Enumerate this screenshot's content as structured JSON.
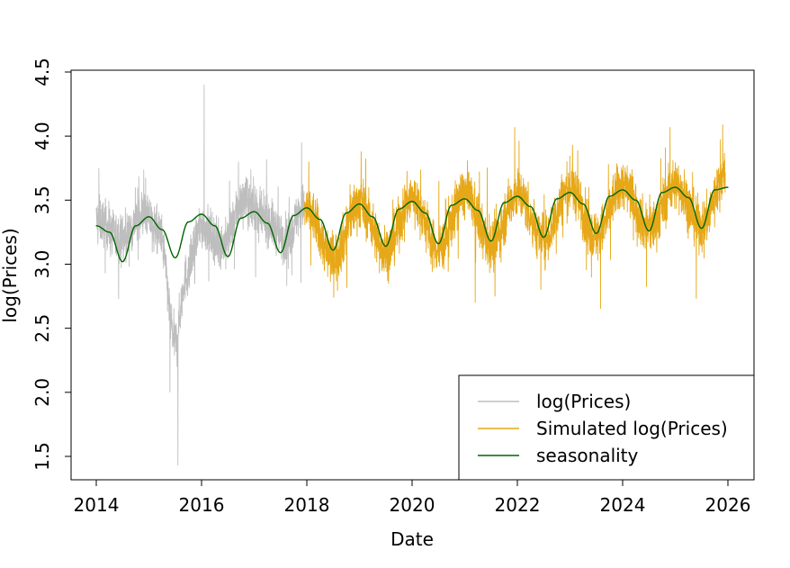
{
  "chart_data": {
    "type": "line",
    "xlabel": "Date",
    "ylabel": "log(Prices)",
    "xlim": [
      2013.5,
      2026.5
    ],
    "ylim": [
      1.32,
      4.52
    ],
    "x_ticks": [
      "2014",
      "2016",
      "2018",
      "2020",
      "2022",
      "2024",
      "2026"
    ],
    "y_ticks": [
      "1.5",
      "2.0",
      "2.5",
      "3.0",
      "3.5",
      "4.0",
      "4.5"
    ],
    "legend_position": "bottom-right",
    "series": [
      {
        "name": "log(Prices)",
        "color": "#bebebe",
        "x_range": [
          2014.0,
          2017.95
        ],
        "approx_band_center": [
          [
            2014.0,
            3.35
          ],
          [
            2014.5,
            3.2
          ],
          [
            2014.9,
            3.4
          ],
          [
            2015.2,
            3.25
          ],
          [
            2015.5,
            2.4
          ],
          [
            2015.7,
            2.9
          ],
          [
            2016.0,
            3.3
          ],
          [
            2016.4,
            3.15
          ],
          [
            2016.8,
            3.5
          ],
          [
            2017.2,
            3.35
          ],
          [
            2017.6,
            3.2
          ],
          [
            2017.95,
            3.45
          ]
        ],
        "notable_points": [
          [
            2014.05,
            3.75
          ],
          [
            2015.4,
            2.0
          ],
          [
            2015.55,
            1.43
          ],
          [
            2016.05,
            4.4
          ],
          [
            2016.7,
            3.8
          ],
          [
            2017.9,
            3.95
          ]
        ]
      },
      {
        "name": "Simulated log(Prices)",
        "color": "#e6a818",
        "x_range": [
          2017.95,
          2025.95
        ],
        "approx_band_center": [
          [
            2018.0,
            3.42
          ],
          [
            2018.5,
            3.05
          ],
          [
            2019.0,
            3.48
          ],
          [
            2019.5,
            3.1
          ],
          [
            2020.0,
            3.52
          ],
          [
            2020.5,
            3.12
          ],
          [
            2021.0,
            3.55
          ],
          [
            2021.5,
            3.15
          ],
          [
            2022.0,
            3.55
          ],
          [
            2022.5,
            3.2
          ],
          [
            2023.0,
            3.6
          ],
          [
            2023.5,
            3.22
          ],
          [
            2024.0,
            3.62
          ],
          [
            2024.5,
            3.28
          ],
          [
            2025.0,
            3.62
          ],
          [
            2025.5,
            3.3
          ],
          [
            2025.95,
            3.7
          ]
        ],
        "notable_points": [
          [
            2021.95,
            4.07
          ],
          [
            2024.9,
            4.07
          ],
          [
            2025.9,
            4.09
          ],
          [
            2025.4,
            2.73
          ],
          [
            2021.2,
            2.7
          ]
        ]
      },
      {
        "name": "seasonality",
        "color": "#006400",
        "x": [
          2014.0,
          2014.25,
          2014.5,
          2014.75,
          2015.0,
          2015.25,
          2015.5,
          2015.75,
          2016.0,
          2016.25,
          2016.5,
          2016.75,
          2017.0,
          2017.25,
          2017.5,
          2017.75,
          2018.0,
          2018.25,
          2018.5,
          2018.75,
          2019.0,
          2019.25,
          2019.5,
          2019.75,
          2020.0,
          2020.25,
          2020.5,
          2020.75,
          2021.0,
          2021.25,
          2021.5,
          2021.75,
          2022.0,
          2022.25,
          2022.5,
          2022.75,
          2023.0,
          2023.25,
          2023.5,
          2023.75,
          2024.0,
          2024.25,
          2024.5,
          2024.75,
          2025.0,
          2025.25,
          2025.5,
          2025.75,
          2026.0
        ],
        "values": [
          3.3,
          3.25,
          3.02,
          3.3,
          3.37,
          3.27,
          3.05,
          3.33,
          3.39,
          3.3,
          3.06,
          3.36,
          3.41,
          3.32,
          3.09,
          3.38,
          3.44,
          3.35,
          3.11,
          3.4,
          3.47,
          3.37,
          3.14,
          3.43,
          3.49,
          3.4,
          3.16,
          3.46,
          3.51,
          3.42,
          3.18,
          3.48,
          3.53,
          3.45,
          3.21,
          3.51,
          3.56,
          3.47,
          3.24,
          3.53,
          3.58,
          3.5,
          3.26,
          3.56,
          3.6,
          3.52,
          3.28,
          3.58,
          3.6
        ]
      }
    ]
  }
}
